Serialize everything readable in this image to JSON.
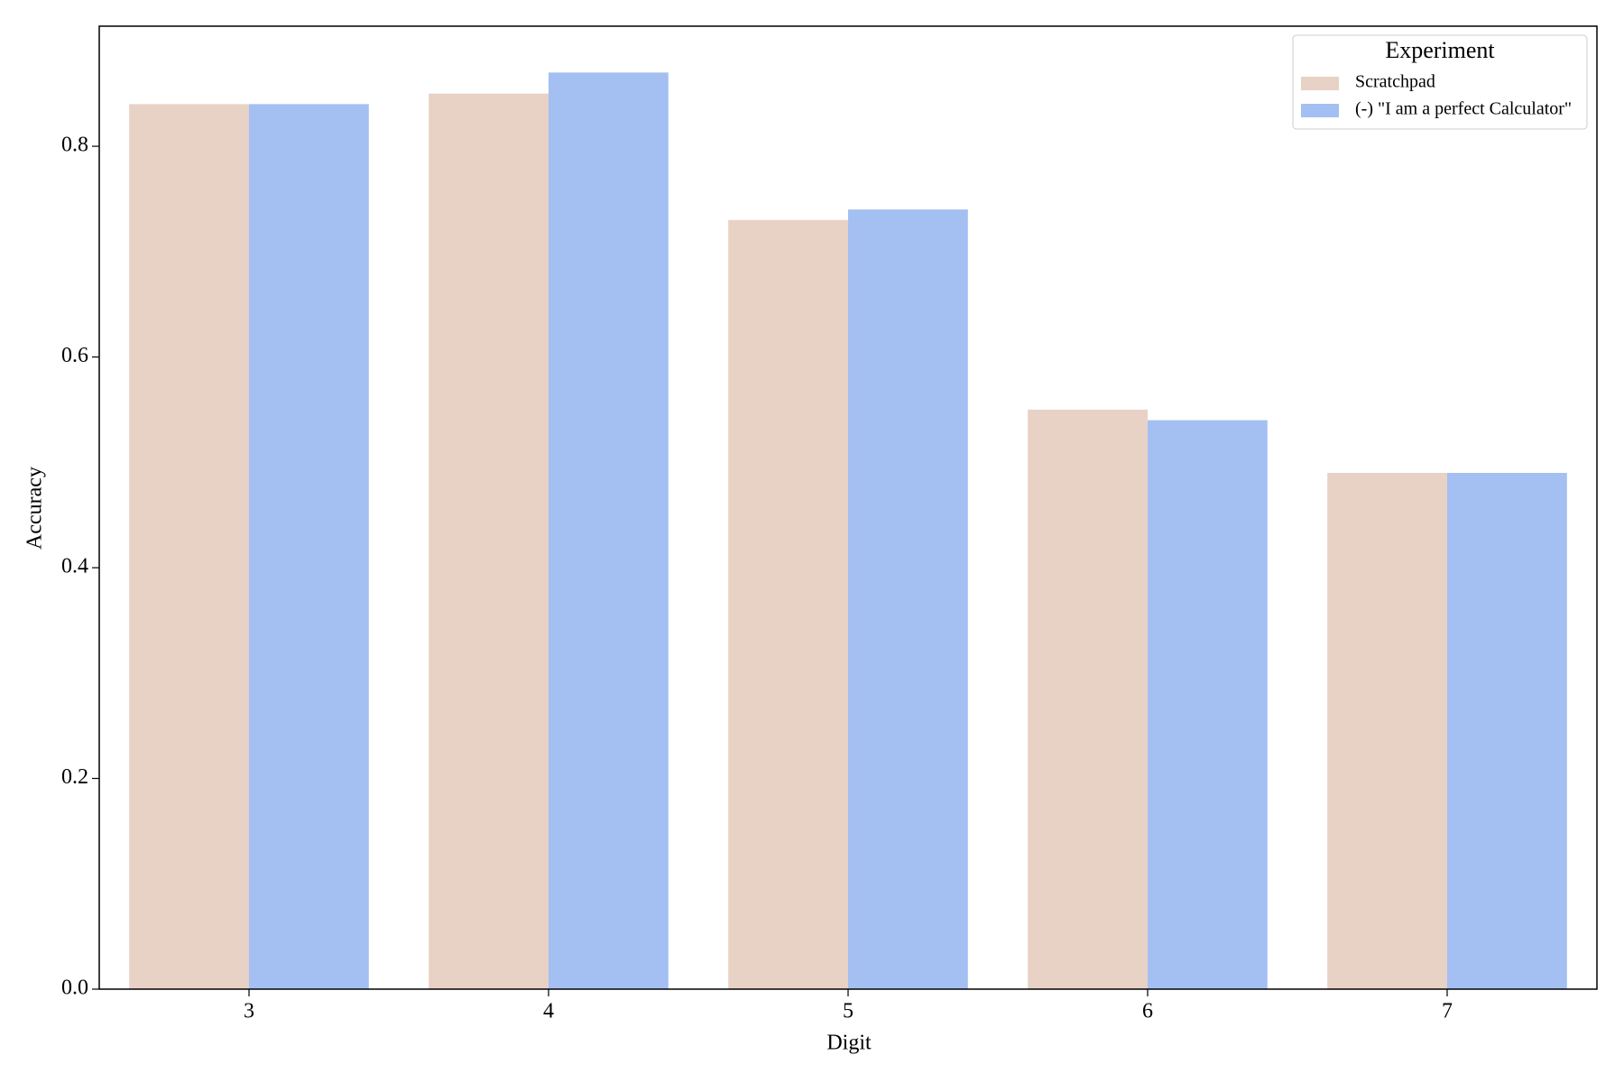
{
  "chart_data": {
    "type": "bar",
    "x_label": "Digit",
    "y_label": "Accuracy",
    "categories": [
      "3",
      "4",
      "5",
      "6",
      "7"
    ],
    "series": [
      {
        "name": "Scratchpad",
        "color": "#e8d1c5",
        "values": [
          0.84,
          0.85,
          0.73,
          0.55,
          0.49
        ]
      },
      {
        "name": "(-) \"I am a perfect Calculator\"",
        "color": "#a4bff2",
        "values": [
          0.84,
          0.87,
          0.74,
          0.54,
          0.49
        ]
      }
    ],
    "ylim": [
      0,
      0.914
    ],
    "yticks": [
      {
        "value": 0,
        "label": "0.0"
      },
      0.2,
      0.4,
      0.6,
      0.8
    ],
    "grid": false,
    "legend": {
      "title": "Experiment",
      "position": "upper right"
    }
  }
}
